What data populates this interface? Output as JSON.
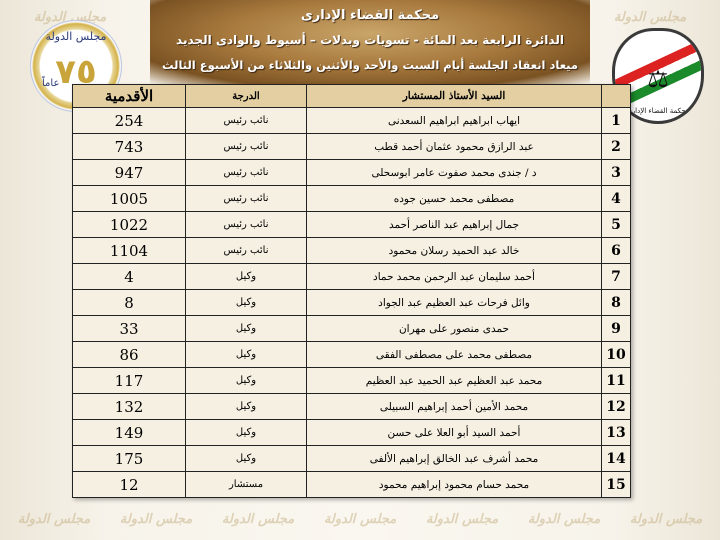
{
  "header": {
    "court": "محكمة القضاء الإدارى",
    "circuit": "الدائرة الرابعة بعد المائة - تسويات وبدلات – أسيوط والوادى الجديد",
    "schedule": "ميعاد انعقاد الجلسة أيام السبت والأحد والأثنين والثلاثاء من الأسبوع الثالث"
  },
  "watermark": "مجلس الدولة",
  "logos": {
    "left": {
      "years": "٧٥",
      "text": "مجلس الدولة",
      "label": "عاماً"
    },
    "right": {
      "text": "مجلس الدولة",
      "caption": "محكمة القضاء الإدارى"
    }
  },
  "table": {
    "headers": {
      "number": "",
      "name": "السيد الأستاذ المستشار",
      "grade": "الدرجة",
      "seniority": "الأقدمية"
    },
    "rows": [
      {
        "number": "1",
        "name": "ايهاب ابراهيم ابراهيم السعدنى",
        "grade": "نائب رئيس",
        "seniority": "254"
      },
      {
        "number": "2",
        "name": "عبد الرازق محمود عثمان أحمد قطب",
        "grade": "نائب رئيس",
        "seniority": "743"
      },
      {
        "number": "3",
        "name": "د / جندى محمد صفوت عامر ابوسحلى",
        "grade": "نائب رئيس",
        "seniority": "947"
      },
      {
        "number": "4",
        "name": "مصطفى محمد حسين جوده",
        "grade": "نائب رئيس",
        "seniority": "1005"
      },
      {
        "number": "5",
        "name": "جمال إبراهيم عبد الناصر أحمد",
        "grade": "نائب رئيس",
        "seniority": "1022"
      },
      {
        "number": "6",
        "name": "خالد عبد الحميد رسلان محمود",
        "grade": "نائب رئيس",
        "seniority": "1104"
      },
      {
        "number": "7",
        "name": "أحمد سليمان عبد الرحمن محمد حماد",
        "grade": "وكيل",
        "seniority": "4"
      },
      {
        "number": "8",
        "name": "وائل فرحات عبد العظيم عبد الجواد",
        "grade": "وكيل",
        "seniority": "8"
      },
      {
        "number": "9",
        "name": "حمدى منصور على مهران",
        "grade": "وكيل",
        "seniority": "33"
      },
      {
        "number": "10",
        "name": "مصطفى محمد على مصطفى الفقى",
        "grade": "وكيل",
        "seniority": "86"
      },
      {
        "number": "11",
        "name": "محمد عبد العظيم عبد الحميد عبد العظيم",
        "grade": "وكيل",
        "seniority": "117"
      },
      {
        "number": "12",
        "name": "محمد الأمين أحمد إبراهيم السبيلى",
        "grade": "وكيل",
        "seniority": "132"
      },
      {
        "number": "13",
        "name": "أحمد السيد أبو العلا على حسن",
        "grade": "وكيل",
        "seniority": "149"
      },
      {
        "number": "14",
        "name": "محمد أشرف عبد الخالق إبراهيم الألفى",
        "grade": "وكيل",
        "seniority": "175"
      },
      {
        "number": "15",
        "name": "محمد حسام محمود إبراهيم محمود",
        "grade": "مستشار",
        "seniority": "12"
      }
    ]
  }
}
